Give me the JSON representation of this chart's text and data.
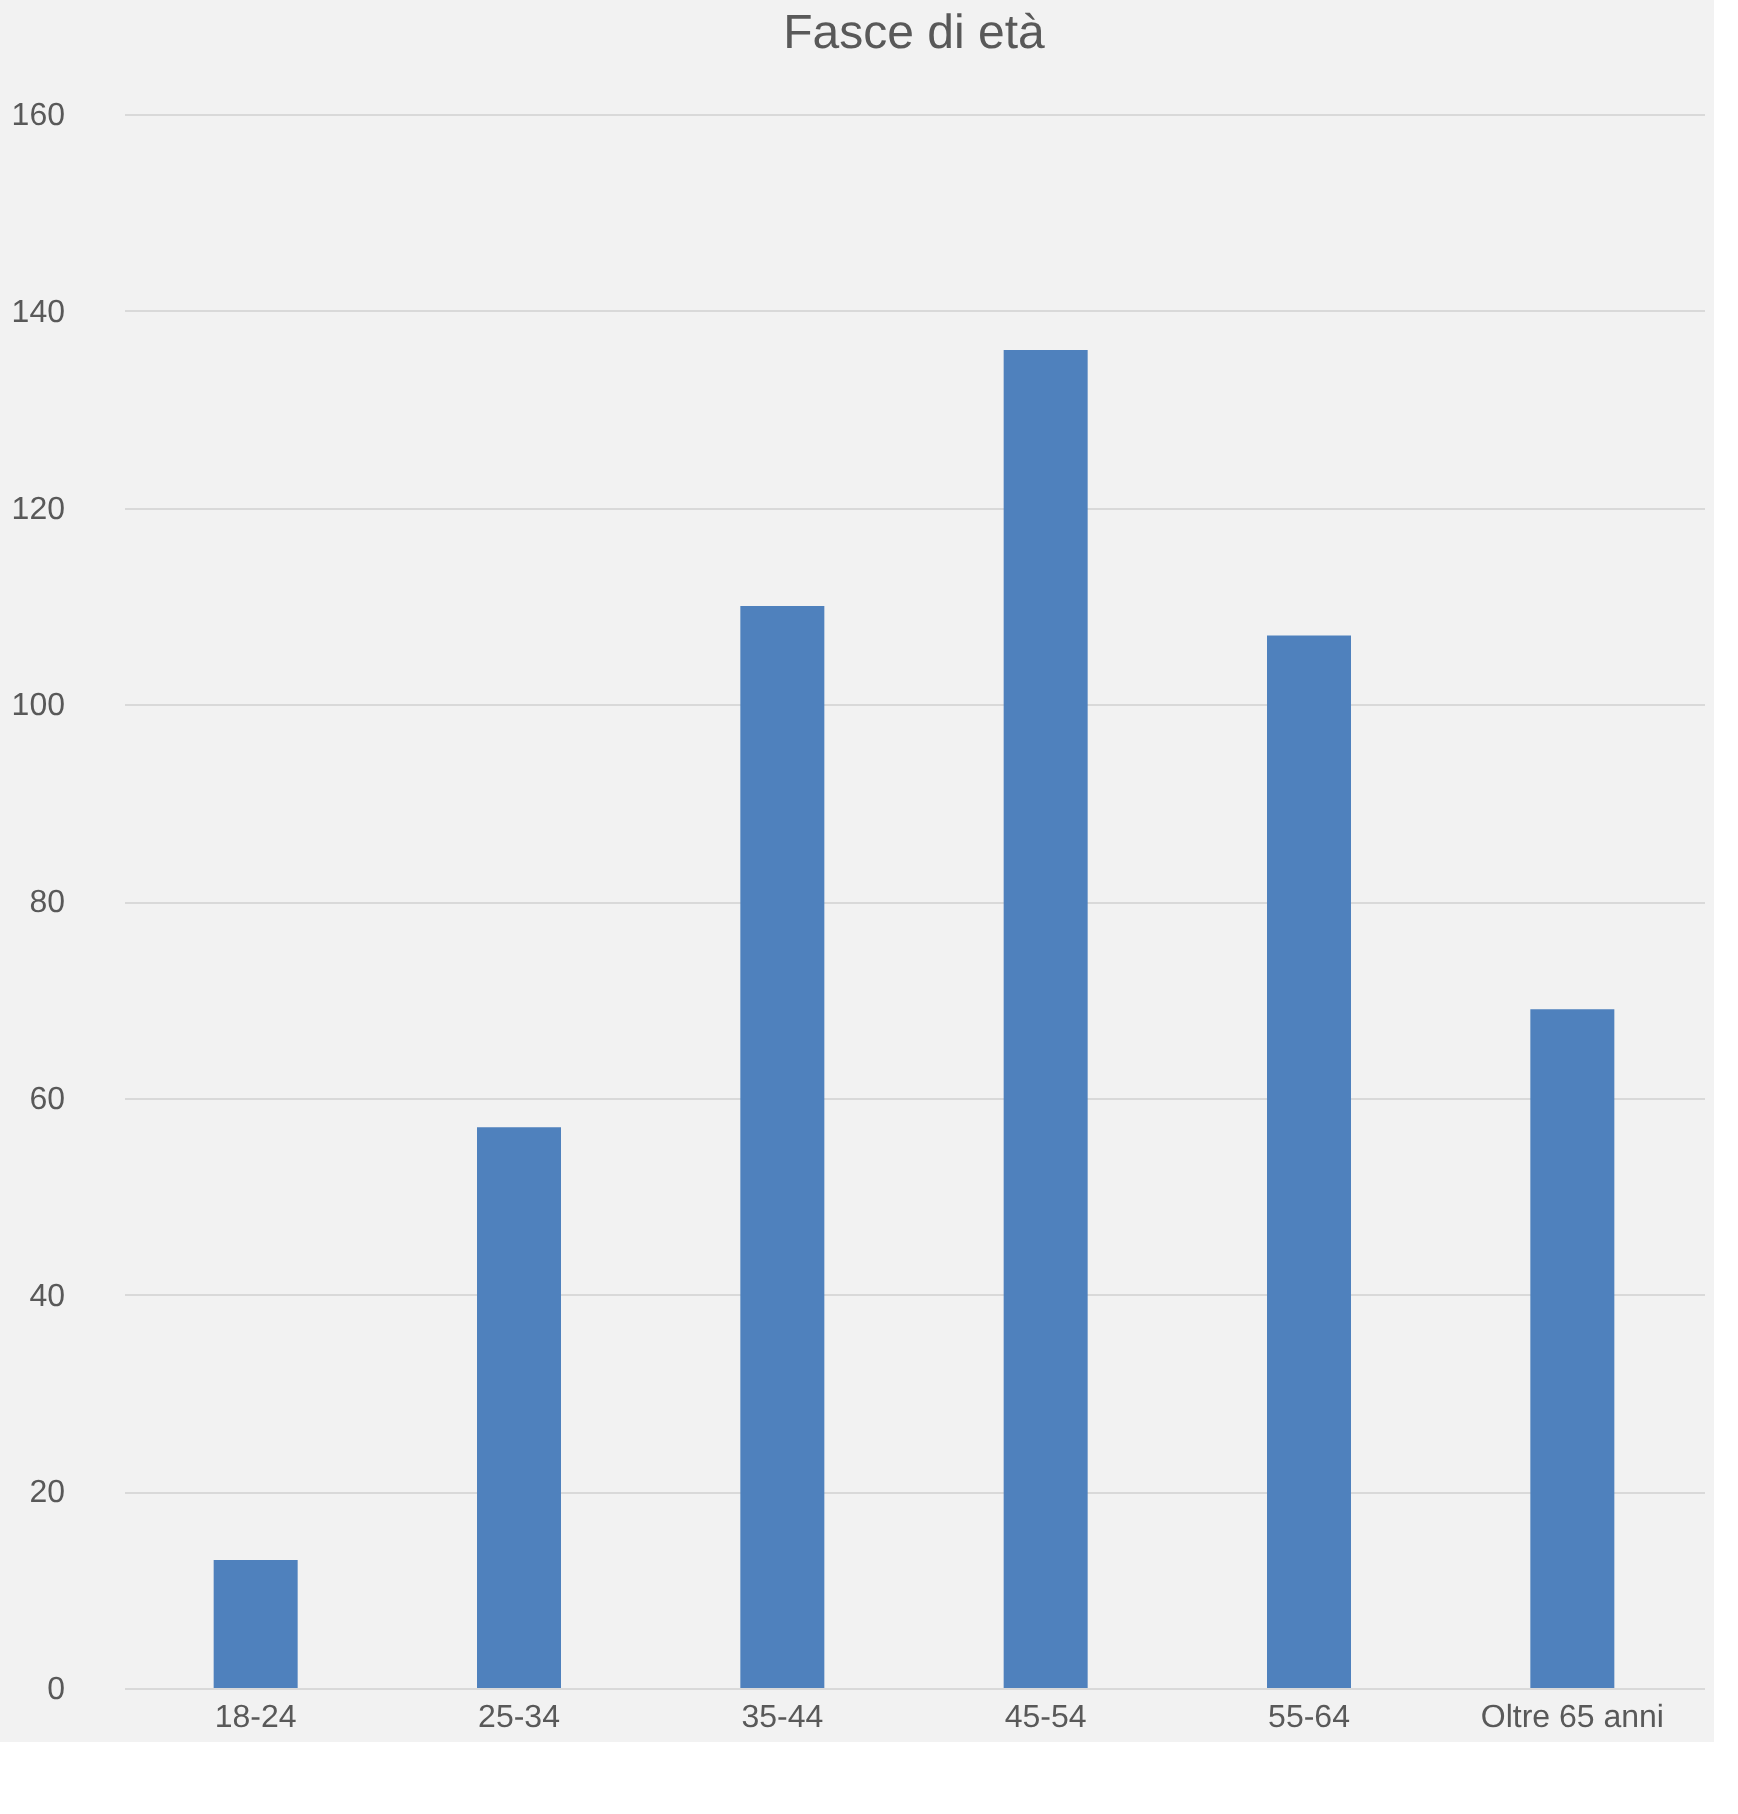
{
  "chart_data": {
    "type": "bar",
    "title": "Fasce di età",
    "categories": [
      "18-24",
      "25-34",
      "35-44",
      "45-54",
      "55-64",
      "Oltre 65 anni"
    ],
    "values": [
      13,
      57,
      110,
      136,
      107,
      69
    ],
    "color": "#4f81bd",
    "ylim": [
      0,
      160
    ],
    "yticks": [
      0,
      20,
      40,
      60,
      80,
      100,
      120,
      140,
      160
    ],
    "grid": "y"
  }
}
